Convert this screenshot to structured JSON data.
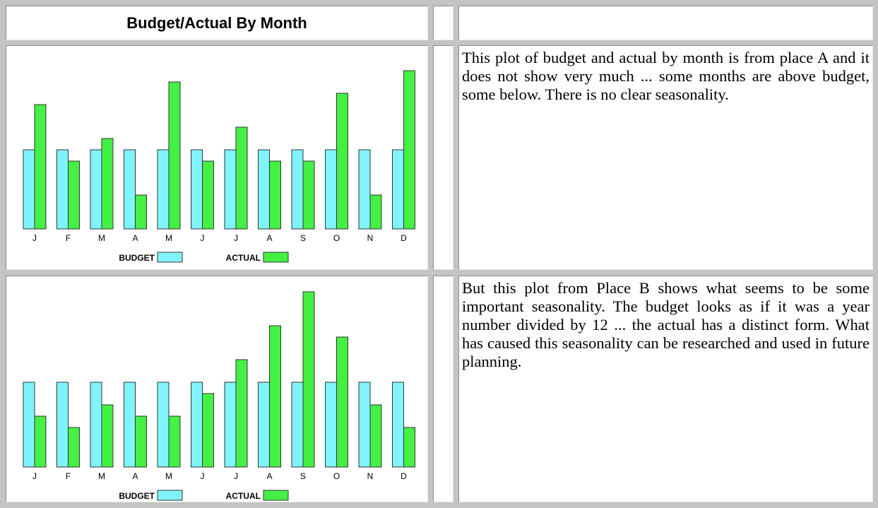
{
  "header": {
    "title": "Budget/Actual By Month"
  },
  "rows": [
    {
      "chart": {
        "type": "bar",
        "categories": [
          "J",
          "F",
          "M",
          "A",
          "M",
          "J",
          "J",
          "A",
          "S",
          "O",
          "N",
          "D"
        ],
        "series": [
          {
            "name": "BUDGET",
            "color": "#80f4fc",
            "values": [
              7,
              7,
              7,
              7,
              7,
              7,
              7,
              7,
              7,
              7,
              7,
              7
            ]
          },
          {
            "name": "ACTUAL",
            "color": "#44f044",
            "values": [
              11,
              6,
              8,
              3,
              13,
              6,
              9,
              6,
              6,
              12,
              3,
              14
            ]
          }
        ],
        "ylim": [
          0,
          15
        ]
      },
      "text": "This plot of budget and actual by month is from place A and it does not show very much ... some months are above budget, some below. There is no clear seasonality."
    },
    {
      "chart": {
        "type": "bar",
        "categories": [
          "J",
          "F",
          "M",
          "A",
          "M",
          "J",
          "J",
          "A",
          "S",
          "O",
          "N",
          "D"
        ],
        "series": [
          {
            "name": "BUDGET",
            "color": "#80f4fc",
            "values": [
              15,
              15,
              15,
              15,
              15,
              15,
              15,
              15,
              15,
              15,
              15,
              15
            ]
          },
          {
            "name": "ACTUAL",
            "color": "#44f044",
            "values": [
              9,
              7,
              11,
              9,
              9,
              13,
              19,
              25,
              31,
              23,
              11,
              7
            ]
          }
        ],
        "ylim": [
          0,
          32
        ]
      },
      "text": "But this plot from Place B shows what seems to be some important seasonality. The budget looks as if it was a year number divided by 12 ... the actual has a distinct form. What has caused this seasonality can be researched and used in future planning."
    }
  ]
}
